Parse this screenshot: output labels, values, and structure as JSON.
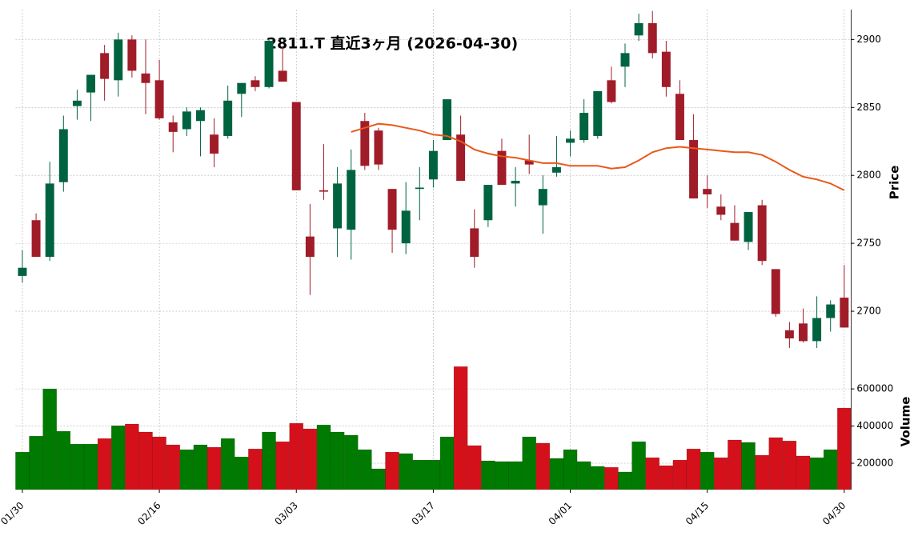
{
  "chart_data": {
    "type": "candlestick",
    "title": "2811.T  直近3ヶ月  (2026-04-30)",
    "ylabel": "Price",
    "volume_label": "Volume",
    "categories": [
      "01/30",
      null,
      null,
      null,
      null,
      null,
      null,
      null,
      null,
      null,
      "02/16",
      null,
      null,
      null,
      null,
      null,
      null,
      null,
      null,
      null,
      "03/03",
      null,
      null,
      null,
      null,
      null,
      null,
      null,
      null,
      null,
      "03/17",
      null,
      null,
      null,
      null,
      null,
      null,
      null,
      null,
      null,
      "04/01",
      null,
      null,
      null,
      null,
      null,
      null,
      null,
      null,
      null,
      "04/15",
      null,
      null,
      null,
      null,
      null,
      null,
      null,
      null,
      null,
      "04/30"
    ],
    "open": [
      2726,
      2767,
      2740,
      2795,
      2851,
      2861,
      2890,
      2870,
      2900,
      2875,
      2870,
      2839,
      2834,
      2840,
      2830,
      2829,
      2860,
      2870,
      2865,
      2877,
      2854,
      2755,
      2789,
      2761,
      2760,
      2840,
      2833,
      2790,
      2750,
      2790,
      2797,
      2826,
      2830,
      2761,
      2767,
      2818,
      2794,
      2811,
      2778,
      2802,
      2824,
      2826,
      2829,
      2870,
      2880,
      2903,
      2912,
      2891,
      2860,
      2826,
      2790,
      2777,
      2765,
      2751,
      2778,
      2731,
      2686,
      2691,
      2678,
      2695,
      2710
    ],
    "high": [
      2745,
      2772,
      2810,
      2844,
      2863,
      2874,
      2896,
      2905,
      2903,
      2900,
      2885,
      2844,
      2850,
      2850,
      2842,
      2866,
      2868,
      2873,
      2900,
      2895,
      2854,
      2779,
      2823,
      2806,
      2819,
      2846,
      2835,
      2790,
      2795,
      2806,
      2826,
      2856,
      2844,
      2775,
      2793,
      2827,
      2806,
      2830,
      2800,
      2829,
      2833,
      2856,
      2862,
      2880,
      2897,
      2919,
      2921,
      2899,
      2870,
      2845,
      2800,
      2786,
      2778,
      2773,
      2782,
      2731,
      2692,
      2702,
      2711,
      2708,
      2734
    ],
    "low": [
      2721,
      2740,
      2737,
      2788,
      2841,
      2840,
      2855,
      2858,
      2872,
      2845,
      2841,
      2817,
      2829,
      2814,
      2806,
      2827,
      2843,
      2862,
      2864,
      2869,
      2789,
      2712,
      2782,
      2740,
      2738,
      2804,
      2804,
      2743,
      2742,
      2767,
      2791,
      2826,
      2796,
      2732,
      2762,
      2793,
      2777,
      2801,
      2757,
      2799,
      2814,
      2824,
      2827,
      2853,
      2865,
      2899,
      2886,
      2858,
      2826,
      2783,
      2776,
      2767,
      2752,
      2745,
      2734,
      2696,
      2673,
      2677,
      2673,
      2685,
      2688
    ],
    "close": [
      2732,
      2740,
      2794,
      2834,
      2855,
      2874,
      2871,
      2900,
      2877,
      2868,
      2842,
      2832,
      2847,
      2848,
      2816,
      2855,
      2868,
      2865,
      2899,
      2869,
      2789,
      2740,
      2788,
      2794,
      2804,
      2807,
      2808,
      2760,
      2774,
      2791,
      2818,
      2856,
      2796,
      2740,
      2793,
      2793,
      2796,
      2808,
      2790,
      2806,
      2827,
      2846,
      2862,
      2854,
      2890,
      2912,
      2890,
      2865,
      2826,
      2783,
      2786,
      2771,
      2752,
      2773,
      2737,
      2698,
      2680,
      2678,
      2695,
      2705,
      2688
    ],
    "volume": [
      260000,
      346000,
      600000,
      372000,
      303000,
      303000,
      333000,
      402000,
      411000,
      368000,
      342000,
      299000,
      273000,
      299000,
      286000,
      333000,
      234000,
      277000,
      368000,
      316000,
      415000,
      385000,
      406000,
      368000,
      351000,
      273000,
      170000,
      260000,
      252000,
      217000,
      217000,
      342000,
      720000,
      295000,
      213000,
      209000,
      209000,
      342000,
      308000,
      226000,
      273000,
      209000,
      183000,
      178000,
      153000,
      316000,
      230000,
      187000,
      217000,
      277000,
      260000,
      230000,
      325000,
      312000,
      243000,
      338000,
      320000,
      239000,
      230000,
      273000,
      497000
    ],
    "moving_average": {
      "color": "#e8591a",
      "values": [
        null,
        null,
        null,
        null,
        null,
        null,
        null,
        null,
        null,
        null,
        null,
        null,
        null,
        null,
        null,
        null,
        null,
        null,
        null,
        null,
        null,
        null,
        null,
        null,
        2832,
        2835,
        2838,
        2837,
        2835,
        2833,
        2830,
        2829,
        2825,
        2819,
        2816,
        2814,
        2813,
        2811,
        2809,
        2809,
        2807,
        2807,
        2807,
        2805,
        2806,
        2811,
        2817,
        2820,
        2821,
        2820,
        2819,
        2818,
        2817,
        2817,
        2815,
        2810,
        2804,
        2799,
        2797,
        2794,
        2789
      ]
    },
    "up_color": "#006340",
    "down_color": "#a01c28",
    "volume_up_color": "#007a00",
    "volume_down_color": "#d4111b",
    "ylim": [
      2670,
      2922
    ],
    "yticks": [
      2700,
      2750,
      2800,
      2850,
      2900
    ],
    "volume_ylim": [
      58000,
      790000
    ],
    "volume_yticks": [
      200000,
      400000,
      600000
    ],
    "grid": true
  }
}
